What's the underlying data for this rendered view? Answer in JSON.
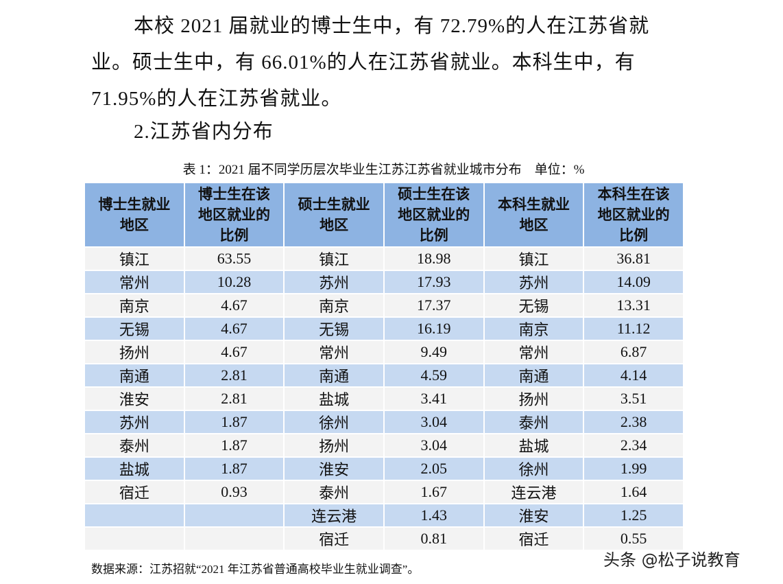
{
  "paragraph": "本校 2021 届就业的博士生中，有 72.79%的人在江苏省就业。硕士生中，有 66.01%的人在江苏省就业。本科生中，有 71.95%的人在江苏省就业。",
  "heading": "2.江苏省内分布",
  "table": {
    "caption": "表 1：2021 届不同学历层次毕业生江苏江苏省就业城市分布　单位：%",
    "header": [
      "博士生就业地区",
      "博士生在该地区就业的比例",
      "硕士生就业地区",
      "硕士生在该地区就业的比例",
      "本科生就业地区",
      "本科生在该地区就业的比例"
    ],
    "rows": [
      [
        "镇江",
        "63.55",
        "镇江",
        "18.98",
        "镇江",
        "36.81"
      ],
      [
        "常州",
        "10.28",
        "苏州",
        "17.93",
        "苏州",
        "14.09"
      ],
      [
        "南京",
        "4.67",
        "南京",
        "17.37",
        "无锡",
        "13.31"
      ],
      [
        "无锡",
        "4.67",
        "无锡",
        "16.19",
        "南京",
        "11.12"
      ],
      [
        "扬州",
        "4.67",
        "常州",
        "9.49",
        "常州",
        "6.87"
      ],
      [
        "南通",
        "2.81",
        "南通",
        "4.59",
        "南通",
        "4.14"
      ],
      [
        "淮安",
        "2.81",
        "盐城",
        "3.41",
        "扬州",
        "3.51"
      ],
      [
        "苏州",
        "1.87",
        "徐州",
        "3.04",
        "泰州",
        "2.38"
      ],
      [
        "泰州",
        "1.87",
        "扬州",
        "3.04",
        "盐城",
        "2.34"
      ],
      [
        "盐城",
        "1.87",
        "淮安",
        "2.05",
        "徐州",
        "1.99"
      ],
      [
        "宿迁",
        "0.93",
        "泰州",
        "1.67",
        "连云港",
        "1.64"
      ],
      [
        null,
        null,
        "连云港",
        "1.43",
        "淮安",
        "1.25"
      ],
      [
        null,
        null,
        "宿迁",
        "0.81",
        "宿迁",
        "0.55"
      ]
    ],
    "source": "数据来源：江苏招就“2021 年江苏省普通高校毕业生就业调查”。"
  },
  "watermark": "头条 @松子说教育"
}
